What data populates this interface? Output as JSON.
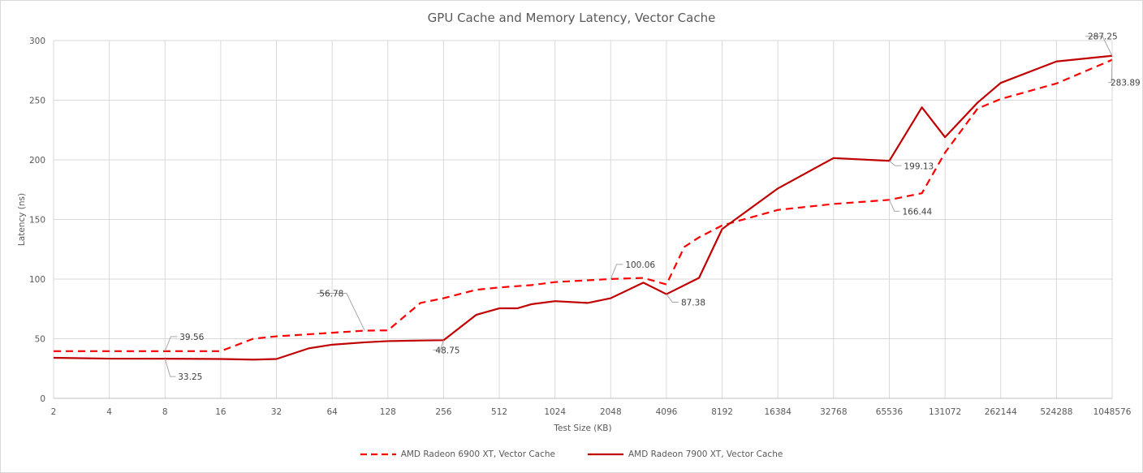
{
  "chart_data": {
    "type": "line",
    "title": "GPU Cache and Memory Latency, Vector Cache",
    "xlabel": "Test Size (KB)",
    "ylabel": "Latency (ns)",
    "xscale": "log2",
    "x_ticks": [
      "2",
      "4",
      "8",
      "16",
      "32",
      "64",
      "128",
      "256",
      "512",
      "1024",
      "2048",
      "4096",
      "8192",
      "16384",
      "32768",
      "65536",
      "131072",
      "262144",
      "524288",
      "1048576"
    ],
    "y_ticks": [
      "0",
      "50",
      "100",
      "150",
      "200",
      "250",
      "300"
    ],
    "ylim": [
      0,
      300
    ],
    "grid": true,
    "legend": "bottom",
    "series": [
      {
        "name": "AMD Radeon 6900 XT, Vector Cache",
        "color": "#ff0000",
        "style": "dashed",
        "x": [
          2,
          4,
          8,
          16,
          24,
          32,
          64,
          96,
          128,
          192,
          256,
          384,
          512,
          768,
          1024,
          1536,
          2048,
          3072,
          4096,
          5120,
          6144,
          8192,
          16384,
          32768,
          65536,
          98304,
          131072,
          196608,
          262144,
          524288,
          1048576
        ],
        "y": [
          39.6,
          39.6,
          39.56,
          39.6,
          50,
          52,
          55,
          56.78,
          57,
          80,
          84,
          91,
          93,
          95,
          97.5,
          99,
          100.06,
          101,
          95.5,
          127,
          135,
          145,
          158,
          163,
          166.44,
          172,
          206,
          243,
          251,
          264,
          283.89
        ],
        "labels": [
          {
            "x": 8,
            "text": "39.56"
          },
          {
            "x": 96,
            "text": "56.78"
          },
          {
            "x": 2048,
            "text": "100.06"
          },
          {
            "x": 65536,
            "text": "166.44"
          },
          {
            "x": 1048576,
            "text": "283.89"
          }
        ]
      },
      {
        "name": "AMD Radeon 7900 XT, Vector Cache",
        "color": "#c00000",
        "style": "solid",
        "x": [
          2,
          4,
          8,
          16,
          24,
          32,
          48,
          64,
          96,
          128,
          192,
          256,
          384,
          512,
          640,
          768,
          1024,
          1536,
          2048,
          3072,
          4096,
          6144,
          8192,
          16384,
          32768,
          65536,
          98304,
          131072,
          196608,
          262144,
          524288,
          1048576
        ],
        "y": [
          34,
          33.3,
          33.25,
          33,
          32.5,
          33,
          42,
          45,
          47,
          48,
          48.5,
          48.75,
          70,
          75.5,
          75.5,
          79,
          81.5,
          80,
          84,
          97,
          87.38,
          101,
          142,
          176,
          201.5,
          199.13,
          244,
          219,
          248,
          264.5,
          282.5,
          287.25
        ],
        "labels": [
          {
            "x": 8,
            "text": "33.25"
          },
          {
            "x": 256,
            "text": "48.75"
          },
          {
            "x": 4096,
            "text": "87.38"
          },
          {
            "x": 65536,
            "text": "199.13"
          },
          {
            "x": 1048576,
            "text": "287.25"
          }
        ]
      }
    ]
  }
}
